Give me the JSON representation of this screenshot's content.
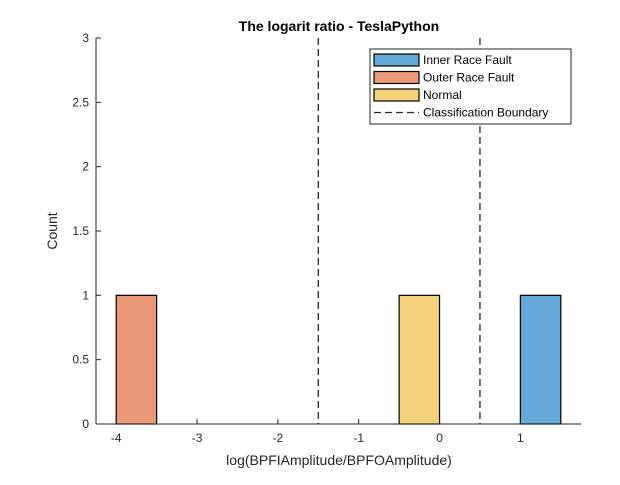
{
  "chart_data": {
    "type": "bar",
    "title": "The logarit ratio - TeslaPython",
    "xlabel": "log(BPFIAmplitude/BPFOAmplitude)",
    "ylabel": "Count",
    "xlim": [
      -4.25,
      1.75
    ],
    "ylim": [
      0,
      3
    ],
    "xticks": [
      -4,
      -3,
      -2,
      -1,
      0,
      1
    ],
    "xtick_labels": [
      "-4",
      "-3",
      "-2",
      "-1",
      "0",
      "1"
    ],
    "yticks": [
      0,
      0.5,
      1,
      1.5,
      2,
      2.5,
      3
    ],
    "ytick_labels": [
      "0",
      "0.5",
      "1",
      "1.5",
      "2",
      "2.5",
      "3"
    ],
    "bin_width": 0.5,
    "series": [
      {
        "name": "Inner Race Fault",
        "color": "#62a9d9",
        "bins": [
          {
            "x0": 1.0,
            "x1": 1.5,
            "count": 1
          }
        ]
      },
      {
        "name": "Outer Race Fault",
        "color": "#ea9a78",
        "bins": [
          {
            "x0": -4.0,
            "x1": -3.5,
            "count": 1
          }
        ]
      },
      {
        "name": "Normal",
        "color": "#f4d27a",
        "bins": [
          {
            "x0": -0.5,
            "x1": 0.0,
            "count": 1
          }
        ]
      }
    ],
    "boundaries": {
      "name": "Classification Boundary",
      "x": [
        -1.5,
        0.5
      ]
    },
    "legend_position": "top-right",
    "grid": false
  }
}
